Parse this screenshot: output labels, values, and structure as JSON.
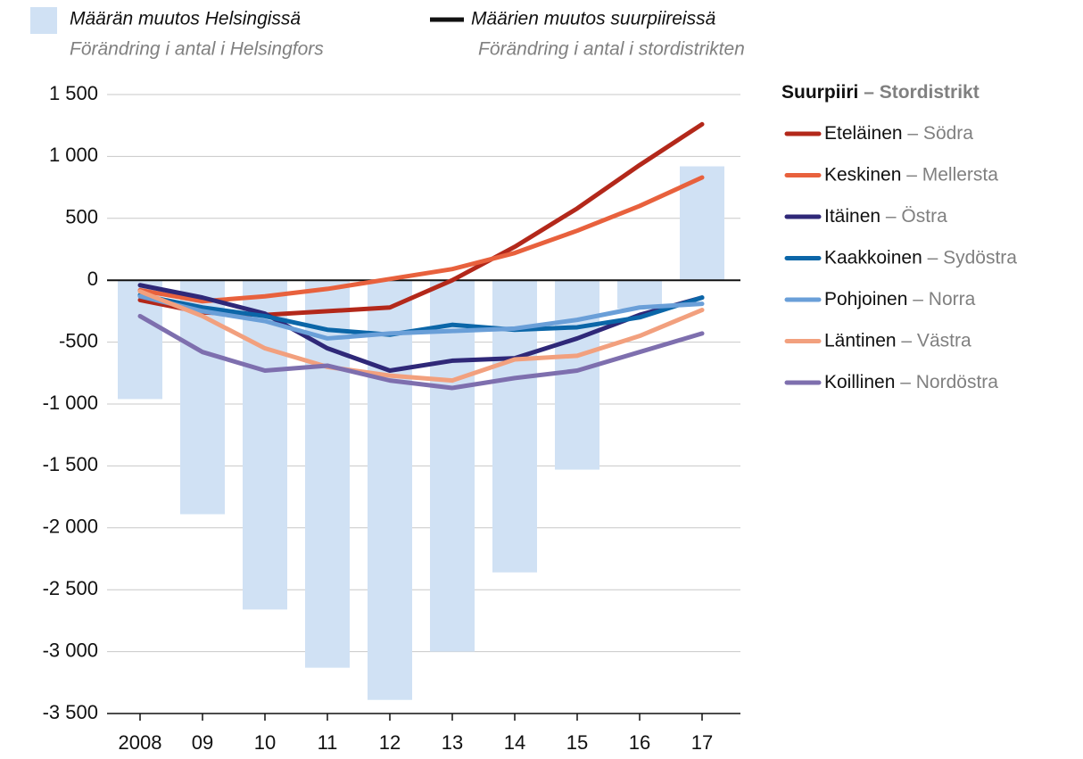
{
  "chart_data": {
    "type": "bar",
    "categories": [
      "2008",
      "09",
      "10",
      "11",
      "12",
      "13",
      "14",
      "15",
      "16",
      "17"
    ],
    "ylim": [
      -3500,
      1500
    ],
    "yticks": [
      {
        "value": 1500,
        "label": "1 500"
      },
      {
        "value": 1000,
        "label": "1 000"
      },
      500,
      0,
      -500,
      {
        "value": -1000,
        "label": "-1 000"
      },
      {
        "value": -1500,
        "label": "-1 500"
      },
      {
        "value": -2000,
        "label": "-2 000"
      },
      {
        "value": -2500,
        "label": "-2 500"
      },
      {
        "value": -3000,
        "label": "-3 000"
      },
      {
        "value": -3500,
        "label": "-3 500"
      }
    ],
    "grid": true,
    "line_legend": {
      "name": "Määrien muutos suurpiireissä",
      "name_sv": "Förändring i antal i stordistrikten",
      "color": "#111111"
    },
    "legend_title": {
      "name": "Suurpiiri",
      "name_sv": "– Stordistrikt"
    },
    "series": [
      {
        "name": "Määrän muutos Helsingissä",
        "name_sv": "Förändring i antal i Helsingfors",
        "type": "bar",
        "color": "#d0e1f4",
        "values": [
          -960,
          -1890,
          -2660,
          -3130,
          -3390,
          -3000,
          -2360,
          -1530,
          -230,
          920
        ]
      },
      {
        "name": "Eteläinen",
        "name_sv": "– Södra",
        "type": "line",
        "color": "#b3281a",
        "values": [
          -160,
          -260,
          -280,
          -250,
          -220,
          0,
          270,
          580,
          930,
          1260
        ]
      },
      {
        "name": "Keskinen",
        "name_sv": "– Mellersta",
        "type": "line",
        "color": "#e8613d",
        "values": [
          -80,
          -170,
          -130,
          -70,
          10,
          90,
          220,
          400,
          600,
          830
        ]
      },
      {
        "name": "Itäinen",
        "name_sv": "– Östra",
        "type": "line",
        "color": "#2f2878",
        "values": [
          -40,
          -140,
          -270,
          -550,
          -730,
          -650,
          -630,
          -470,
          -280,
          -140
        ]
      },
      {
        "name": "Kaakkoinen",
        "name_sv": "– Sydöstra",
        "type": "line",
        "color": "#0b66a8",
        "values": [
          -120,
          -220,
          -290,
          -400,
          -440,
          -360,
          -400,
          -380,
          -300,
          -140
        ]
      },
      {
        "name": "Pohjoinen",
        "name_sv": "– Norra",
        "type": "line",
        "color": "#6a9fd8",
        "values": [
          -130,
          -250,
          -330,
          -470,
          -430,
          -410,
          -390,
          -320,
          -220,
          -190
        ]
      },
      {
        "name": "Läntinen",
        "name_sv": "– Västra",
        "type": "line",
        "color": "#f2a07e",
        "values": [
          -90,
          -290,
          -550,
          -700,
          -770,
          -810,
          -640,
          -610,
          -450,
          -240
        ]
      },
      {
        "name": "Koillinen",
        "name_sv": "– Nordöstra",
        "type": "line",
        "color": "#7e6fae",
        "values": [
          -290,
          -580,
          -730,
          -690,
          -810,
          -870,
          -790,
          -730,
          -580,
          -430
        ]
      }
    ]
  }
}
